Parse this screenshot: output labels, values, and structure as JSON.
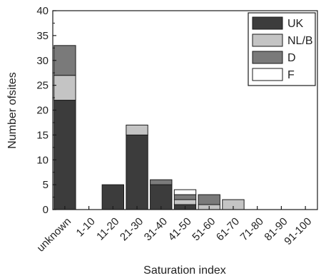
{
  "chart_data": {
    "type": "bar",
    "stacked": true,
    "categories": [
      "unknown",
      "1-10",
      "11-20",
      "21-30",
      "31-40",
      "41-50",
      "51-60",
      "61-70",
      "71-80",
      "81-90",
      "91-100"
    ],
    "series": [
      {
        "name": "UK",
        "color": "#3c3c3c",
        "values": [
          22,
          0,
          5,
          15,
          5,
          1,
          0,
          0,
          0,
          0,
          0
        ]
      },
      {
        "name": "NL/B",
        "color": "#c4c4c4",
        "values": [
          5,
          0,
          0,
          2,
          0,
          1,
          1,
          2,
          0,
          0,
          0
        ]
      },
      {
        "name": "D",
        "color": "#7a7a7a",
        "values": [
          6,
          0,
          0,
          0,
          1,
          1,
          2,
          0,
          0,
          0,
          0
        ]
      },
      {
        "name": "F",
        "color": "#ffffff",
        "values": [
          0,
          0,
          0,
          0,
          0,
          1,
          0,
          0,
          0,
          0,
          0
        ]
      }
    ],
    "xlabel": "Saturation index",
    "ylabel": "Number ofsites",
    "ylim": [
      0,
      40
    ],
    "yticks": [
      0,
      5,
      10,
      15,
      20,
      25,
      30,
      35,
      40
    ],
    "legend_position": "top-right",
    "grid": false
  }
}
